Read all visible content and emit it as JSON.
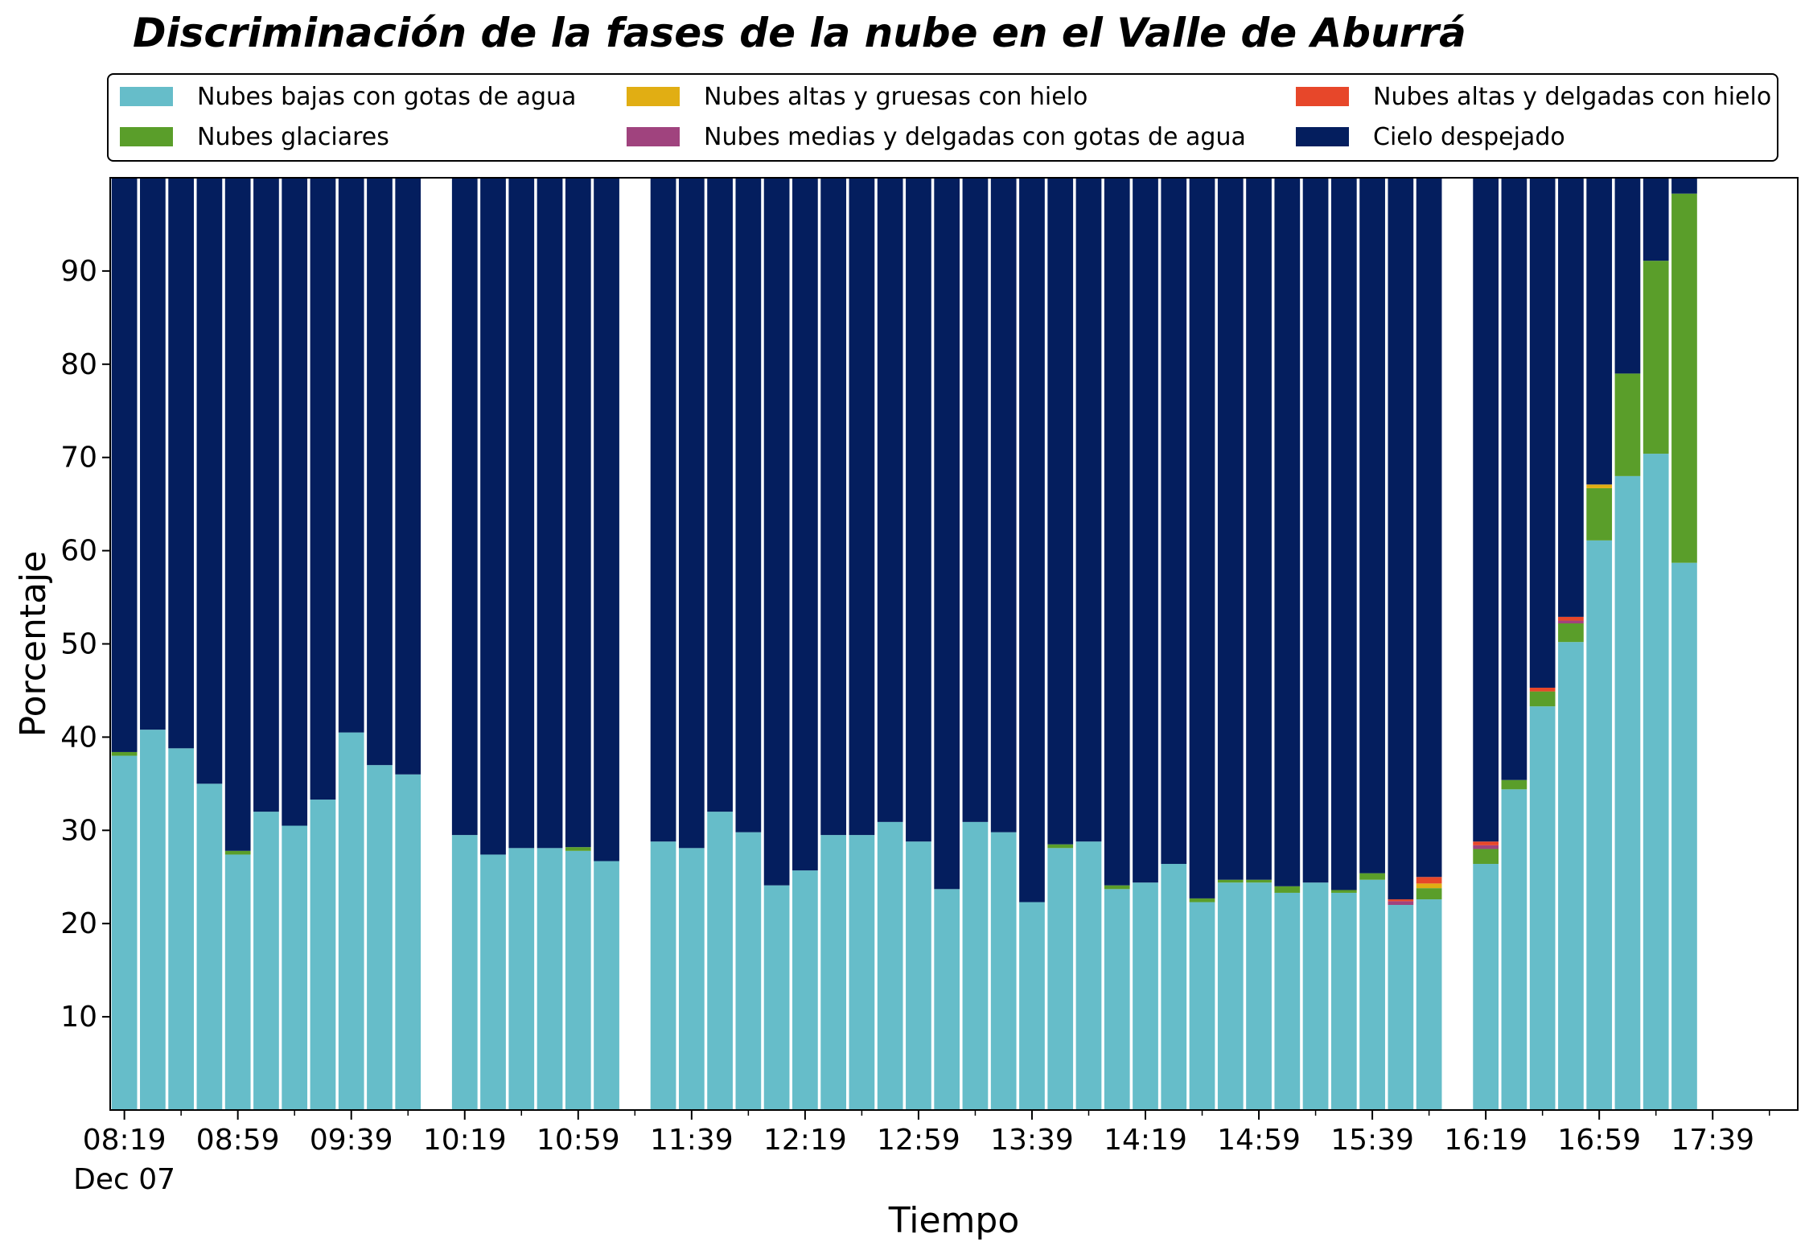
{
  "chart_data": {
    "type": "bar",
    "stacked": true,
    "title": "Discriminación de la fases de la nube en el Valle de Aburrá",
    "xlabel": "Tiempo",
    "ylabel": "Porcentaje",
    "ylim": [
      0,
      100
    ],
    "yticks": [
      10,
      20,
      30,
      40,
      50,
      60,
      70,
      80,
      90
    ],
    "xticks": [
      {
        "label": "08:19",
        "date": "Dec 07",
        "minutes_after_start": 0
      },
      {
        "label": "08:59",
        "minutes_after_start": 40
      },
      {
        "label": "09:39",
        "minutes_after_start": 80
      },
      {
        "label": "10:19",
        "minutes_after_start": 120
      },
      {
        "label": "10:59",
        "minutes_after_start": 160
      },
      {
        "label": "11:39",
        "minutes_after_start": 200
      },
      {
        "label": "12:19",
        "minutes_after_start": 240
      },
      {
        "label": "12:59",
        "minutes_after_start": 280
      },
      {
        "label": "13:39",
        "minutes_after_start": 320
      },
      {
        "label": "14:19",
        "minutes_after_start": 360
      },
      {
        "label": "14:59",
        "minutes_after_start": 400
      },
      {
        "label": "15:39",
        "minutes_after_start": 440
      },
      {
        "label": "16:19",
        "minutes_after_start": 480
      },
      {
        "label": "16:59",
        "minutes_after_start": 520
      },
      {
        "label": "17:39",
        "minutes_after_start": 560
      }
    ],
    "xrange_minutes": [
      -5,
      590
    ],
    "bar_interval_minutes": 10,
    "bar_width_minutes": 9,
    "grid": false,
    "legend_position": "top",
    "legend_columns": 3,
    "series": [
      {
        "name": "Nubes bajas con gotas de agua",
        "color": "#66bdc9",
        "values": [
          38.0,
          40.8,
          38.8,
          35.0,
          27.4,
          32.0,
          30.5,
          33.3,
          40.5,
          37.0,
          36.0,
          null,
          29.5,
          27.4,
          28.1,
          28.1,
          27.8,
          26.7,
          null,
          28.8,
          28.1,
          32.0,
          29.8,
          24.1,
          25.7,
          29.5,
          29.5,
          30.9,
          28.8,
          23.7,
          30.9,
          29.8,
          22.3,
          28.1,
          28.8,
          23.7,
          24.4,
          26.4,
          22.3,
          24.4,
          24.4,
          23.3,
          24.4,
          23.3,
          24.7,
          22.0,
          22.6,
          null,
          26.4,
          34.4,
          43.3,
          50.2,
          61.1,
          68.0,
          70.4,
          58.7
        ]
      },
      {
        "name": "Nubes glaciares",
        "color": "#5a9e2a",
        "values": [
          0.4,
          0,
          0,
          0,
          0.4,
          0,
          0,
          0,
          0,
          0,
          0,
          null,
          0,
          0,
          0,
          0,
          0.4,
          0,
          null,
          0,
          0,
          0,
          0,
          0,
          0,
          0,
          0,
          0,
          0,
          0,
          0,
          0,
          0,
          0.4,
          0,
          0.4,
          0,
          0,
          0.4,
          0.3,
          0.3,
          0.7,
          0,
          0.3,
          0.7,
          0,
          1.2,
          null,
          1.6,
          1.0,
          1.6,
          2.0,
          5.6,
          11.0,
          20.7,
          39.6
        ]
      },
      {
        "name": "Nubes altas y gruesas con hielo",
        "color": "#e1ae13",
        "values": [
          0,
          0,
          0,
          0,
          0,
          0,
          0,
          0,
          0,
          0,
          0,
          null,
          0,
          0,
          0,
          0,
          0,
          0,
          null,
          0,
          0,
          0,
          0,
          0,
          0,
          0,
          0,
          0,
          0,
          0,
          0,
          0,
          0,
          0,
          0,
          0,
          0,
          0,
          0,
          0,
          0,
          0,
          0,
          0,
          0,
          0,
          0.5,
          null,
          0,
          0,
          0,
          0,
          0.4,
          0,
          0,
          0
        ]
      },
      {
        "name": "Nubes medias y delgadas con gotas de agua",
        "color": "#a0437e",
        "values": [
          0,
          0,
          0,
          0,
          0,
          0,
          0,
          0,
          0,
          0,
          0,
          null,
          0,
          0,
          0,
          0,
          0,
          0,
          null,
          0,
          0,
          0,
          0,
          0,
          0,
          0,
          0,
          0,
          0,
          0,
          0,
          0,
          0,
          0,
          0,
          0,
          0,
          0,
          0,
          0,
          0,
          0,
          0,
          0,
          0,
          0.4,
          0,
          null,
          0.4,
          0,
          0,
          0.3,
          0,
          0,
          0,
          0
        ]
      },
      {
        "name": "Nubes altas y delgadas con hielo",
        "color": "#e7472a",
        "values": [
          0,
          0,
          0,
          0,
          0,
          0,
          0,
          0,
          0,
          0,
          0,
          null,
          0,
          0,
          0,
          0,
          0,
          0,
          null,
          0,
          0,
          0,
          0,
          0,
          0,
          0,
          0,
          0,
          0,
          0,
          0,
          0,
          0,
          0,
          0,
          0,
          0,
          0,
          0,
          0,
          0,
          0,
          0,
          0,
          0,
          0.2,
          0.7,
          null,
          0.4,
          0,
          0.4,
          0.4,
          0,
          0,
          0,
          0
        ]
      },
      {
        "name": "Cielo despejado",
        "color": "#041e5e",
        "values": [
          61.6,
          59.2,
          61.2,
          65.0,
          72.2,
          68.0,
          69.5,
          66.7,
          59.5,
          63.0,
          64.0,
          null,
          70.5,
          72.6,
          71.9,
          71.9,
          71.8,
          73.3,
          null,
          71.2,
          71.9,
          68.0,
          70.2,
          75.9,
          74.3,
          70.5,
          70.5,
          69.1,
          71.2,
          76.3,
          69.1,
          70.2,
          77.7,
          71.5,
          71.2,
          75.9,
          75.6,
          73.6,
          77.3,
          75.3,
          75.3,
          76.0,
          75.6,
          76.4,
          74.6,
          77.4,
          75.0,
          null,
          71.2,
          64.6,
          54.7,
          47.1,
          32.9,
          21.0,
          8.9,
          1.7
        ]
      }
    ]
  }
}
